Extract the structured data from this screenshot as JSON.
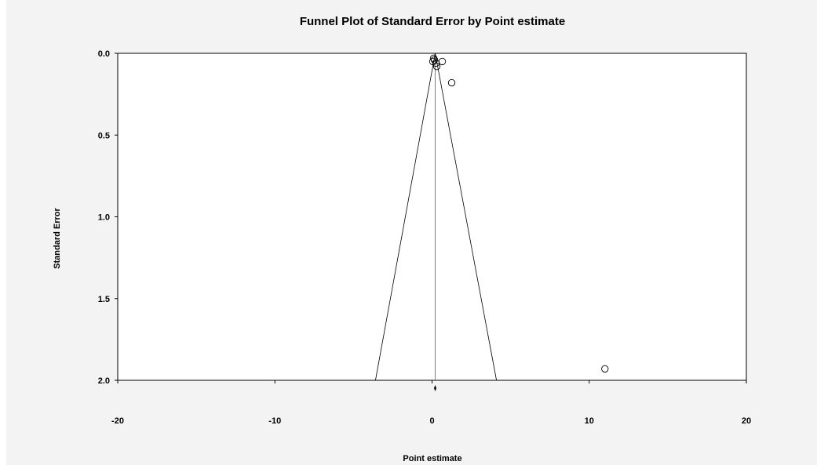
{
  "chart_data": {
    "type": "scatter",
    "title": "Funnel Plot of Standard Error by Point estimate",
    "xlabel": "Point estimate",
    "ylabel": "Standard Error",
    "xlim": [
      -20,
      20
    ],
    "ylim": [
      0.0,
      2.0
    ],
    "y_inverted": true,
    "x_ticks": [
      "-20",
      "-10",
      "0",
      "10",
      "20"
    ],
    "y_ticks": [
      "0.0",
      "0.5",
      "1.0",
      "1.5",
      "2.0"
    ],
    "grid": false,
    "legend": "none",
    "center_line_x": 0.2,
    "funnel": {
      "apex": [
        0.2,
        0.0
      ],
      "left_bottom": [
        -3.6,
        2.0
      ],
      "right_bottom": [
        4.1,
        2.0
      ]
    },
    "points": [
      {
        "x": 0.1,
        "y": 0.03
      },
      {
        "x": 0.15,
        "y": 0.04
      },
      {
        "x": 0.05,
        "y": 0.05
      },
      {
        "x": 0.25,
        "y": 0.06
      },
      {
        "x": 0.3,
        "y": 0.08
      },
      {
        "x": 0.65,
        "y": 0.05
      },
      {
        "x": 1.25,
        "y": 0.18
      },
      {
        "x": 11.0,
        "y": 1.93
      }
    ],
    "combined_effect": {
      "x": 0.2
    }
  },
  "colors": {
    "background": "#f3f3f3",
    "plot_area": "#ffffff",
    "axes": "#000000",
    "funnel": "#000000",
    "center_line": "#808080",
    "marker_stroke": "#000000"
  }
}
